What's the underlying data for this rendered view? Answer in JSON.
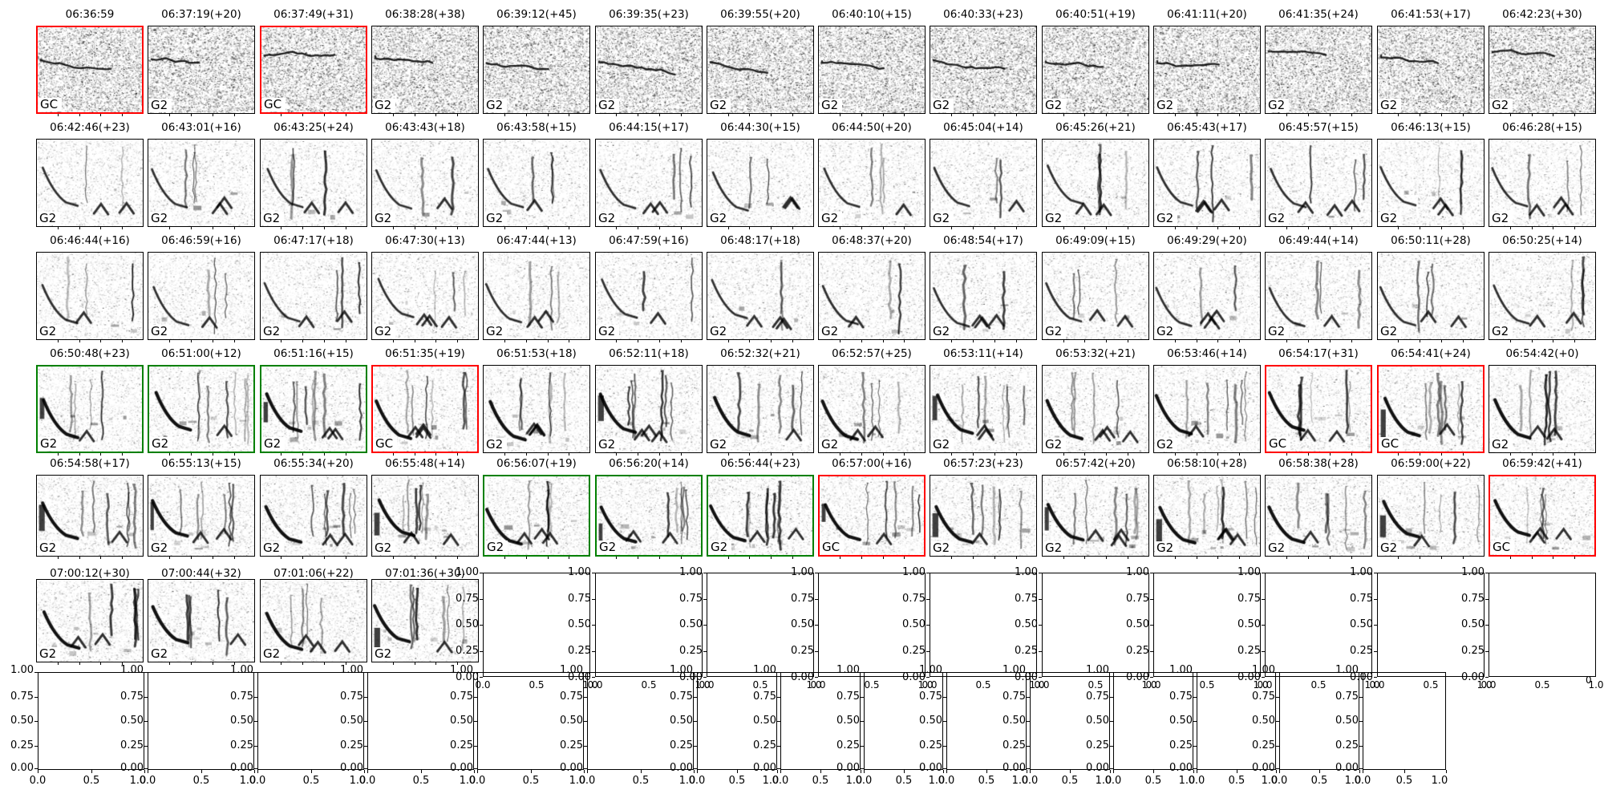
{
  "chart_data": {
    "type": "heatmap",
    "title": "",
    "grid": {
      "columns": 14,
      "spectrogram_rows": 6
    },
    "axes_defaults": {
      "yticks": [
        "1.00",
        "0.75",
        "0.50",
        "0.25",
        "0.00"
      ],
      "xticks": [
        "0.0",
        "0.5",
        "1.0"
      ],
      "ylim": [
        0,
        1
      ],
      "xlim": [
        0,
        1
      ]
    },
    "rows": [
      {
        "cells": [
          {
            "title": "06:36:59",
            "label": "GC",
            "border": "red"
          },
          {
            "title": "06:37:19(+20)",
            "label": "G2",
            "border": "black"
          },
          {
            "title": "06:37:49(+31)",
            "label": "GC",
            "border": "red"
          },
          {
            "title": "06:38:28(+38)",
            "label": "G2",
            "border": "black"
          },
          {
            "title": "06:39:12(+45)",
            "label": "G2",
            "border": "black"
          },
          {
            "title": "06:39:35(+23)",
            "label": "G2",
            "border": "black"
          },
          {
            "title": "06:39:55(+20)",
            "label": "G2",
            "border": "black"
          },
          {
            "title": "06:40:10(+15)",
            "label": "G2",
            "border": "black"
          },
          {
            "title": "06:40:33(+23)",
            "label": "G2",
            "border": "black"
          },
          {
            "title": "06:40:51(+19)",
            "label": "G2",
            "border": "black"
          },
          {
            "title": "06:41:11(+20)",
            "label": "G2",
            "border": "black"
          },
          {
            "title": "06:41:35(+24)",
            "label": "G2",
            "border": "black"
          },
          {
            "title": "06:41:53(+17)",
            "label": "G2",
            "border": "black"
          },
          {
            "title": "06:42:23(+30)",
            "label": "G2",
            "border": "black"
          }
        ]
      },
      {
        "cells": [
          {
            "title": "06:42:46(+23)",
            "label": "G2",
            "border": "black"
          },
          {
            "title": "06:43:01(+16)",
            "label": "G2",
            "border": "black"
          },
          {
            "title": "06:43:25(+24)",
            "label": "G2",
            "border": "black"
          },
          {
            "title": "06:43:43(+18)",
            "label": "G2",
            "border": "black"
          },
          {
            "title": "06:43:58(+15)",
            "label": "G2",
            "border": "black"
          },
          {
            "title": "06:44:15(+17)",
            "label": "G2",
            "border": "black"
          },
          {
            "title": "06:44:30(+15)",
            "label": "G2",
            "border": "black"
          },
          {
            "title": "06:44:50(+20)",
            "label": "G2",
            "border": "black"
          },
          {
            "title": "06:45:04(+14)",
            "label": "G2",
            "border": "black"
          },
          {
            "title": "06:45:26(+21)",
            "label": "G2",
            "border": "black"
          },
          {
            "title": "06:45:43(+17)",
            "label": "G2",
            "border": "black"
          },
          {
            "title": "06:45:57(+15)",
            "label": "G2",
            "border": "black"
          },
          {
            "title": "06:46:13(+15)",
            "label": "G2",
            "border": "black"
          },
          {
            "title": "06:46:28(+15)",
            "label": "G2",
            "border": "black"
          }
        ]
      },
      {
        "cells": [
          {
            "title": "06:46:44(+16)",
            "label": "G2",
            "border": "black"
          },
          {
            "title": "06:46:59(+16)",
            "label": "G2",
            "border": "black"
          },
          {
            "title": "06:47:17(+18)",
            "label": "G2",
            "border": "black"
          },
          {
            "title": "06:47:30(+13)",
            "label": "G2",
            "border": "black"
          },
          {
            "title": "06:47:44(+13)",
            "label": "G2",
            "border": "black"
          },
          {
            "title": "06:47:59(+16)",
            "label": "G2",
            "border": "black"
          },
          {
            "title": "06:48:17(+18)",
            "label": "G2",
            "border": "black"
          },
          {
            "title": "06:48:37(+20)",
            "label": "G2",
            "border": "black"
          },
          {
            "title": "06:48:54(+17)",
            "label": "G2",
            "border": "black"
          },
          {
            "title": "06:49:09(+15)",
            "label": "G2",
            "border": "black"
          },
          {
            "title": "06:49:29(+20)",
            "label": "G2",
            "border": "black"
          },
          {
            "title": "06:49:44(+14)",
            "label": "G2",
            "border": "black"
          },
          {
            "title": "06:50:11(+28)",
            "label": "G2",
            "border": "black"
          },
          {
            "title": "06:50:25(+14)",
            "label": "G2",
            "border": "black"
          }
        ]
      },
      {
        "cells": [
          {
            "title": "06:50:48(+23)",
            "label": "G2",
            "border": "green"
          },
          {
            "title": "06:51:00(+12)",
            "label": "G2",
            "border": "green"
          },
          {
            "title": "06:51:16(+15)",
            "label": "G2",
            "border": "green"
          },
          {
            "title": "06:51:35(+19)",
            "label": "GC",
            "border": "red"
          },
          {
            "title": "06:51:53(+18)",
            "label": "G2",
            "border": "black"
          },
          {
            "title": "06:52:11(+18)",
            "label": "G2",
            "border": "black"
          },
          {
            "title": "06:52:32(+21)",
            "label": "G2",
            "border": "black"
          },
          {
            "title": "06:52:57(+25)",
            "label": "G2",
            "border": "black"
          },
          {
            "title": "06:53:11(+14)",
            "label": "G2",
            "border": "black"
          },
          {
            "title": "06:53:32(+21)",
            "label": "G2",
            "border": "black"
          },
          {
            "title": "06:53:46(+14)",
            "label": "G2",
            "border": "black"
          },
          {
            "title": "06:54:17(+31)",
            "label": "GC",
            "border": "red"
          },
          {
            "title": "06:54:41(+24)",
            "label": "GC",
            "border": "red"
          },
          {
            "title": "06:54:42(+0)",
            "label": "G2",
            "border": "black"
          }
        ]
      },
      {
        "cells": [
          {
            "title": "06:54:58(+17)",
            "label": "G2",
            "border": "black"
          },
          {
            "title": "06:55:13(+15)",
            "label": "G2",
            "border": "black"
          },
          {
            "title": "06:55:34(+20)",
            "label": "G2",
            "border": "black"
          },
          {
            "title": "06:55:48(+14)",
            "label": "G2",
            "border": "black"
          },
          {
            "title": "06:56:07(+19)",
            "label": "G2",
            "border": "green"
          },
          {
            "title": "06:56:20(+14)",
            "label": "G2",
            "border": "green"
          },
          {
            "title": "06:56:44(+23)",
            "label": "G2",
            "border": "green"
          },
          {
            "title": "06:57:00(+16)",
            "label": "GC",
            "border": "red"
          },
          {
            "title": "06:57:23(+23)",
            "label": "G2",
            "border": "black"
          },
          {
            "title": "06:57:42(+20)",
            "label": "G2",
            "border": "black"
          },
          {
            "title": "06:58:10(+28)",
            "label": "G2",
            "border": "black"
          },
          {
            "title": "06:58:38(+28)",
            "label": "G2",
            "border": "black"
          },
          {
            "title": "06:59:00(+22)",
            "label": "G2",
            "border": "black"
          },
          {
            "title": "06:59:42(+41)",
            "label": "GC",
            "border": "red"
          }
        ]
      },
      {
        "cells": [
          {
            "title": "07:00:12(+30)",
            "label": "G2",
            "border": "black"
          },
          {
            "title": "07:00:44(+32)",
            "label": "G2",
            "border": "black"
          },
          {
            "title": "07:01:06(+22)",
            "label": "G2",
            "border": "black"
          },
          {
            "title": "07:01:36(+30)",
            "label": "G2",
            "border": "black"
          }
        ]
      }
    ]
  },
  "axes": {
    "yticks": [
      "1.00",
      "0.75",
      "0.50",
      "0.25",
      "0.00"
    ],
    "xticks": [
      "0.0",
      "0.5",
      "1.0"
    ],
    "stray": "0"
  },
  "colors": {
    "border_red": "#ff0000",
    "border_green": "#008000",
    "border_black": "#000000",
    "spine": "#000000",
    "background": "#ffffff"
  }
}
